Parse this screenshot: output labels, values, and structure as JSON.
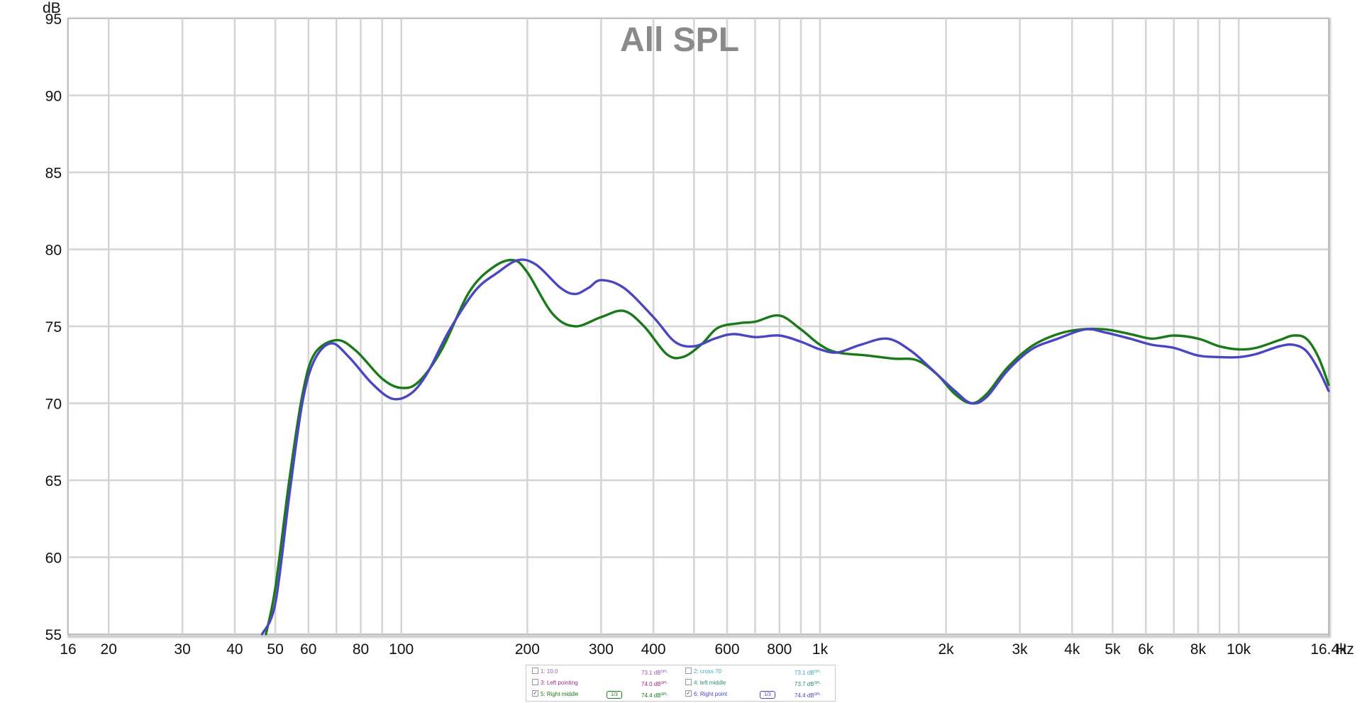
{
  "chart_data": {
    "type": "line",
    "title": "All SPL",
    "ylabel": "dB",
    "x_unit": "Hz",
    "xscale": "log",
    "xlim": [
      16,
      16400
    ],
    "ylim": [
      55,
      95
    ],
    "grid": true,
    "y_ticks": [
      "55",
      "60",
      "65",
      "70",
      "75",
      "80",
      "85",
      "90",
      "95"
    ],
    "x_ticks": [
      {
        "value": 16,
        "label": "16"
      },
      {
        "value": 20,
        "label": "20"
      },
      {
        "value": 30,
        "label": "30"
      },
      {
        "value": 40,
        "label": "40"
      },
      {
        "value": 50,
        "label": "50"
      },
      {
        "value": 60,
        "label": "60"
      },
      {
        "value": 80,
        "label": "80"
      },
      {
        "value": 100,
        "label": "100"
      },
      {
        "value": 200,
        "label": "200"
      },
      {
        "value": 300,
        "label": "300"
      },
      {
        "value": 400,
        "label": "400"
      },
      {
        "value": 600,
        "label": "600"
      },
      {
        "value": 800,
        "label": "800"
      },
      {
        "value": 1000,
        "label": "1k"
      },
      {
        "value": 2000,
        "label": "2k"
      },
      {
        "value": 3000,
        "label": "3k"
      },
      {
        "value": 4000,
        "label": "4k"
      },
      {
        "value": 5000,
        "label": "5k"
      },
      {
        "value": 6000,
        "label": "6k"
      },
      {
        "value": 8000,
        "label": "8k"
      },
      {
        "value": 10000,
        "label": "10k"
      },
      {
        "value": 16400,
        "label": "16.4k"
      }
    ],
    "grid_x": [
      20,
      30,
      40,
      50,
      60,
      70,
      80,
      90,
      100,
      200,
      300,
      400,
      500,
      600,
      700,
      800,
      900,
      1000,
      2000,
      3000,
      4000,
      5000,
      6000,
      7000,
      8000,
      9000,
      10000
    ],
    "grid_y": [
      60,
      65,
      70,
      75,
      80,
      85,
      90
    ],
    "series": [
      {
        "name": "5: Right middle",
        "color": "#1a7a1a",
        "points": [
          [
            47.5,
            55
          ],
          [
            50,
            58
          ],
          [
            54,
            65
          ],
          [
            58,
            70.5
          ],
          [
            62,
            73.2
          ],
          [
            70,
            74.1
          ],
          [
            78,
            73.4
          ],
          [
            90,
            71.6
          ],
          [
            100,
            71
          ],
          [
            110,
            71.4
          ],
          [
            125,
            73.5
          ],
          [
            145,
            77.2
          ],
          [
            165,
            78.8
          ],
          [
            185,
            79.3
          ],
          [
            200,
            78.5
          ],
          [
            230,
            75.8
          ],
          [
            260,
            75
          ],
          [
            300,
            75.6
          ],
          [
            340,
            76
          ],
          [
            380,
            75
          ],
          [
            430,
            73.2
          ],
          [
            470,
            73
          ],
          [
            520,
            73.8
          ],
          [
            570,
            74.9
          ],
          [
            640,
            75.2
          ],
          [
            700,
            75.3
          ],
          [
            800,
            75.7
          ],
          [
            900,
            74.8
          ],
          [
            1000,
            73.8
          ],
          [
            1100,
            73.3
          ],
          [
            1300,
            73.1
          ],
          [
            1500,
            72.9
          ],
          [
            1700,
            72.8
          ],
          [
            1900,
            71.9
          ],
          [
            2100,
            70.6
          ],
          [
            2300,
            70
          ],
          [
            2500,
            70.6
          ],
          [
            2800,
            72.3
          ],
          [
            3200,
            73.7
          ],
          [
            3700,
            74.5
          ],
          [
            4200,
            74.8
          ],
          [
            4800,
            74.8
          ],
          [
            5500,
            74.5
          ],
          [
            6200,
            74.2
          ],
          [
            7000,
            74.4
          ],
          [
            8000,
            74.2
          ],
          [
            9000,
            73.7
          ],
          [
            10000,
            73.5
          ],
          [
            11000,
            73.6
          ],
          [
            12500,
            74.1
          ],
          [
            13500,
            74.4
          ],
          [
            14500,
            74.2
          ],
          [
            15500,
            73
          ],
          [
            16400,
            71.2
          ]
        ]
      },
      {
        "name": "6: Right point",
        "color": "#4a46c2",
        "points": [
          [
            46.5,
            55
          ],
          [
            50,
            57
          ],
          [
            54,
            64
          ],
          [
            58,
            70
          ],
          [
            62,
            72.8
          ],
          [
            68,
            73.9
          ],
          [
            75,
            73
          ],
          [
            85,
            71.3
          ],
          [
            95,
            70.3
          ],
          [
            105,
            70.6
          ],
          [
            115,
            71.9
          ],
          [
            130,
            74.7
          ],
          [
            150,
            77.3
          ],
          [
            170,
            78.5
          ],
          [
            190,
            79.3
          ],
          [
            210,
            79
          ],
          [
            240,
            77.5
          ],
          [
            260,
            77.1
          ],
          [
            280,
            77.5
          ],
          [
            300,
            78
          ],
          [
            340,
            77.5
          ],
          [
            400,
            75.6
          ],
          [
            450,
            74
          ],
          [
            500,
            73.7
          ],
          [
            560,
            74.2
          ],
          [
            620,
            74.5
          ],
          [
            700,
            74.3
          ],
          [
            800,
            74.4
          ],
          [
            900,
            74
          ],
          [
            1000,
            73.5
          ],
          [
            1100,
            73.3
          ],
          [
            1250,
            73.8
          ],
          [
            1450,
            74.2
          ],
          [
            1650,
            73.4
          ],
          [
            1850,
            72.2
          ],
          [
            2100,
            70.8
          ],
          [
            2300,
            70
          ],
          [
            2500,
            70.4
          ],
          [
            2800,
            72.1
          ],
          [
            3200,
            73.5
          ],
          [
            3700,
            74.2
          ],
          [
            4300,
            74.8
          ],
          [
            4800,
            74.6
          ],
          [
            5500,
            74.2
          ],
          [
            6200,
            73.8
          ],
          [
            7000,
            73.6
          ],
          [
            8000,
            73.1
          ],
          [
            9000,
            73
          ],
          [
            10000,
            73
          ],
          [
            11000,
            73.2
          ],
          [
            12500,
            73.7
          ],
          [
            13500,
            73.8
          ],
          [
            14500,
            73.4
          ],
          [
            15500,
            72.2
          ],
          [
            16400,
            70.8
          ]
        ]
      }
    ]
  },
  "legend": {
    "rows": [
      [
        {
          "checkbox": false,
          "label": "1: 10.0",
          "value": "73.1 dB",
          "sup": "SPL",
          "color": "#a356c0",
          "smoothing": ""
        },
        {
          "checkbox": false,
          "label": "2: cross 70",
          "value": "73.1 dB",
          "sup": "SPL",
          "color": "#3ca8c8",
          "smoothing": ""
        }
      ],
      [
        {
          "checkbox": false,
          "label": "3: Left pointing",
          "value": "74.0 dB",
          "sup": "SPL",
          "color": "#a02a8a",
          "smoothing": ""
        },
        {
          "checkbox": false,
          "label": "4: left middle",
          "value": "73.7 dB",
          "sup": "SPL",
          "color": "#2f8f7a",
          "smoothing": ""
        }
      ],
      [
        {
          "checkbox": true,
          "label": "5: Right middle",
          "value": "74.4 dB",
          "sup": "SPL",
          "color": "#1a7a1a",
          "smoothing": "1/3"
        },
        {
          "checkbox": true,
          "label": "6: Right point",
          "value": "74.4 dB",
          "sup": "SPL",
          "color": "#4a46c2",
          "smoothing": "1/3"
        }
      ]
    ]
  }
}
